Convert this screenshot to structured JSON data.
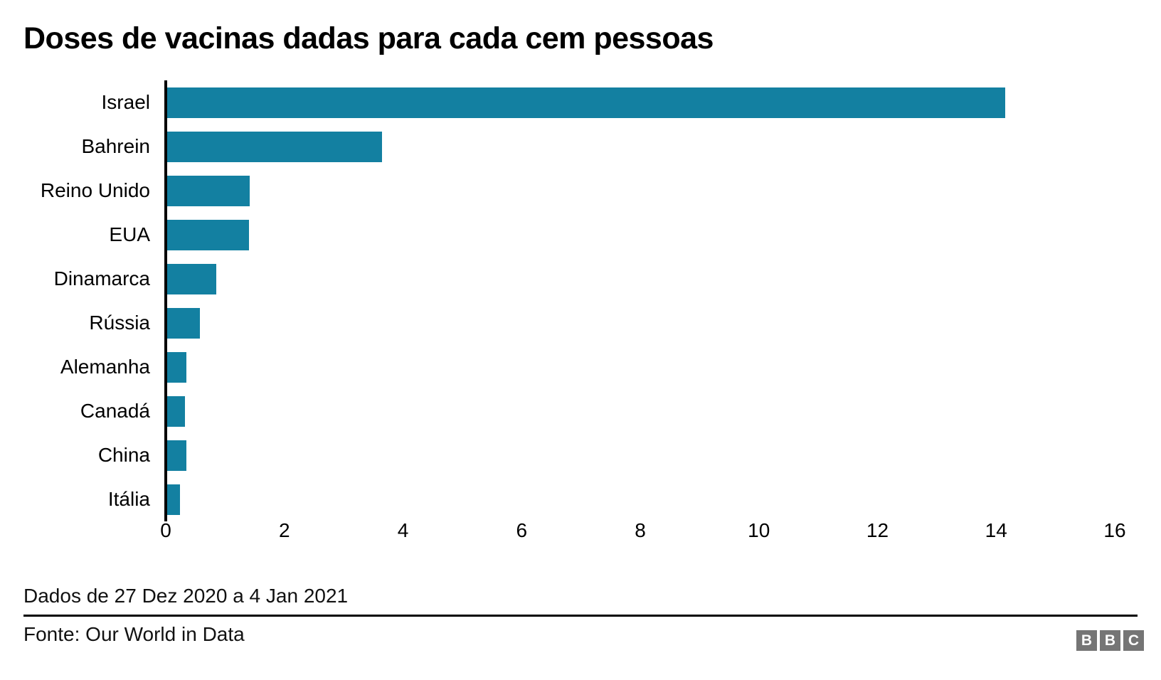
{
  "chart_data": {
    "type": "bar",
    "orientation": "horizontal",
    "title": "Doses de vacinas dadas para cada cem pessoas",
    "categories": [
      "Israel",
      "Bahrein",
      "Reino Unido",
      "EUA",
      "Dinamarca",
      "Rússia",
      "Alemanha",
      "Canadá",
      "China",
      "Itália"
    ],
    "values": [
      14.15,
      3.65,
      1.42,
      1.4,
      0.85,
      0.58,
      0.35,
      0.32,
      0.35,
      0.24
    ],
    "xlabel": "",
    "ylabel": "",
    "xlim": [
      0,
      16
    ],
    "x_ticks": [
      0,
      2,
      4,
      6,
      8,
      10,
      12,
      14,
      16
    ],
    "grid": false,
    "legend": false,
    "bar_color": "#1380a1",
    "axis_line_color": "#000000"
  },
  "footer": {
    "date_range": "Dados de 27 Dez 2020 a 4 Jan 2021",
    "source": "Fonte: Our World in Data"
  },
  "logo": {
    "letters": [
      "B",
      "B",
      "C"
    ],
    "square_color": "#757575",
    "letter_color": "#ffffff"
  }
}
